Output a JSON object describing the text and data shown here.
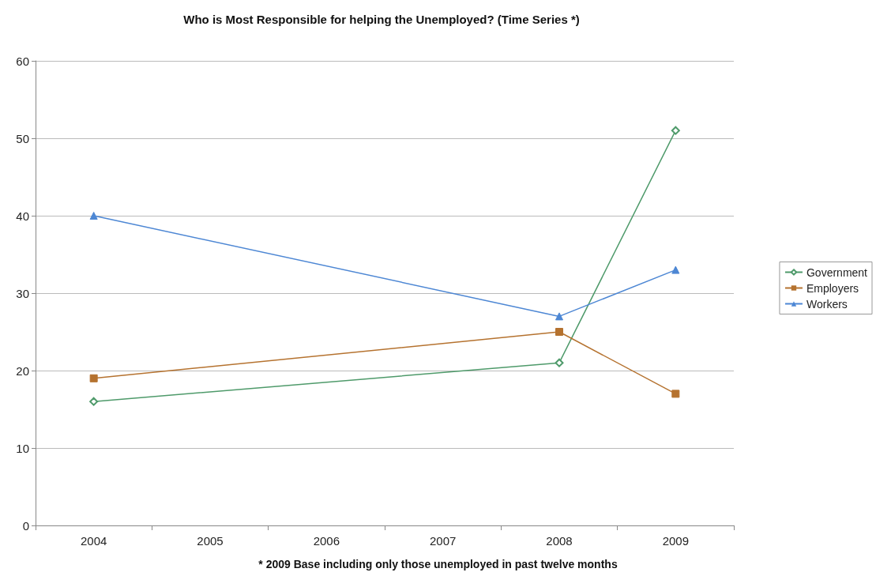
{
  "chart_data": {
    "type": "line",
    "title": "Who is Most Responsible for helping the Unemployed? (Time Series *)",
    "categories": [
      "2004",
      "2005",
      "2006",
      "2007",
      "2008",
      "2009"
    ],
    "series": [
      {
        "name": "Government",
        "color": "#4e9a6a",
        "marker": "diamond",
        "values": [
          16,
          null,
          null,
          null,
          21,
          51
        ]
      },
      {
        "name": "Employers",
        "color": "#b5722f",
        "marker": "square",
        "values": [
          19,
          null,
          null,
          null,
          25,
          17
        ]
      },
      {
        "name": "Workers",
        "color": "#4d87d4",
        "marker": "triangle",
        "values": [
          40,
          null,
          null,
          null,
          27,
          33
        ]
      }
    ],
    "ylim": [
      0,
      60
    ],
    "yticks": [
      0,
      10,
      20,
      30,
      40,
      50,
      60
    ],
    "grid": "y",
    "legend": "right",
    "annotations": [
      "* 2009 Base including only those unemployed in past twelve months"
    ]
  }
}
